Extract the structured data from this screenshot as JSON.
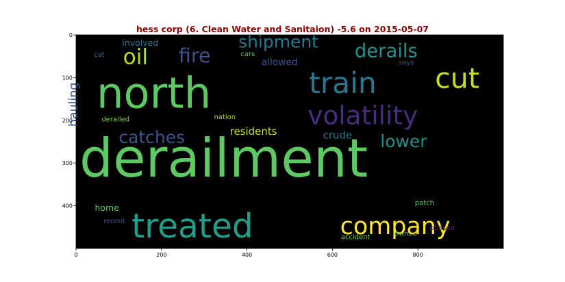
{
  "chart_data": {
    "type": "wordcloud",
    "title": "hess corp (6. Clean Water and Sanitaion) -5.6 on 2015-05-07",
    "xlabel": "",
    "ylabel": "",
    "xlim": [
      0,
      1000
    ],
    "ylim": [
      500,
      0
    ],
    "x_ticks": [
      0,
      200,
      400,
      600,
      800
    ],
    "y_ticks": [
      0,
      100,
      200,
      300,
      400
    ],
    "background": "#000000",
    "words": [
      {
        "text": "derailment",
        "x": 8,
        "y": 332,
        "size": 124,
        "color": "#5ec962"
      },
      {
        "text": "north",
        "x": 48,
        "y": 171,
        "size": 100,
        "color": "#5ec962"
      },
      {
        "text": "treated",
        "x": 130,
        "y": 474,
        "size": 78,
        "color": "#1f9e89"
      },
      {
        "text": "train",
        "x": 545,
        "y": 136,
        "size": 68,
        "color": "#2a788e"
      },
      {
        "text": "cut",
        "x": 840,
        "y": 124,
        "size": 66,
        "color": "#c2df23"
      },
      {
        "text": "volatility",
        "x": 542,
        "y": 209,
        "size": 60,
        "color": "#472d7b"
      },
      {
        "text": "company",
        "x": 618,
        "y": 466,
        "size": 56,
        "color": "#fde725"
      },
      {
        "text": "oil",
        "x": 110,
        "y": 68,
        "size": 50,
        "color": "#b5de2b"
      },
      {
        "text": "fire",
        "x": 240,
        "y": 64,
        "size": 46,
        "color": "#3b528b"
      },
      {
        "text": "derails",
        "x": 652,
        "y": 52,
        "size": 44,
        "color": "#21918c"
      },
      {
        "text": "shipment",
        "x": 380,
        "y": 30,
        "size": 40,
        "color": "#2a788e"
      },
      {
        "text": "catches",
        "x": 100,
        "y": 253,
        "size": 40,
        "color": "#3b528b"
      },
      {
        "text": "lower",
        "x": 712,
        "y": 263,
        "size": 40,
        "color": "#21918c"
      },
      {
        "text": "hauling",
        "x": 3,
        "y": 215,
        "size": 28,
        "color": "#3b528b",
        "rotate": -90
      },
      {
        "text": "residents",
        "x": 360,
        "y": 234,
        "size": 24,
        "color": "#c2df23"
      },
      {
        "text": "crude",
        "x": 578,
        "y": 243,
        "size": 24,
        "color": "#2a788e"
      },
      {
        "text": "allowed",
        "x": 434,
        "y": 71,
        "size": 22,
        "color": "#3b528b"
      },
      {
        "text": "involved",
        "x": 108,
        "y": 26,
        "size": 20,
        "color": "#2a788e"
      },
      {
        "text": "home",
        "x": 44,
        "y": 412,
        "size": 20,
        "color": "#5ec962"
      },
      {
        "text": "cat",
        "x": 42,
        "y": 51,
        "size": 16,
        "color": "#31688e"
      },
      {
        "text": "cars",
        "x": 385,
        "y": 50,
        "size": 16,
        "color": "#5ec962"
      },
      {
        "text": "says",
        "x": 755,
        "y": 70,
        "size": 16,
        "color": "#3e4989"
      },
      {
        "text": "derailed",
        "x": 60,
        "y": 203,
        "size": 16,
        "color": "#7ad151"
      },
      {
        "text": "nation",
        "x": 323,
        "y": 197,
        "size": 16,
        "color": "#b5de2b"
      },
      {
        "text": "patch",
        "x": 793,
        "y": 398,
        "size": 16,
        "color": "#5ec962"
      },
      {
        "text": "recent",
        "x": 64,
        "y": 441,
        "size": 16,
        "color": "#3b528b"
      },
      {
        "text": "phased",
        "x": 828,
        "y": 457,
        "size": 16,
        "color": "#482878"
      },
      {
        "text": "accident",
        "x": 620,
        "y": 478,
        "size": 16,
        "color": "#7ad151"
      },
      {
        "text": "owned",
        "x": 745,
        "y": 470,
        "size": 16,
        "color": "#5ec962"
      }
    ]
  }
}
